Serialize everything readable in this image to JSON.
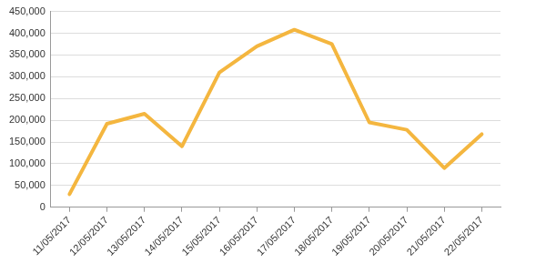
{
  "chart_data": {
    "type": "line",
    "categories": [
      "11/05/2017",
      "12/05/2017",
      "13/05/2017",
      "14/05/2017",
      "15/05/2017",
      "16/05/2017",
      "17/05/2017",
      "18/05/2017",
      "19/05/2017",
      "20/05/2017",
      "21/05/2017",
      "22/05/2017"
    ],
    "values": [
      30000,
      192000,
      215000,
      140000,
      310000,
      370000,
      408000,
      375000,
      195000,
      178000,
      90000,
      168000
    ],
    "color": "#f4b63f",
    "marker": "none",
    "line_style": "solid",
    "ylim": [
      0,
      450000
    ],
    "yticks": [
      0,
      {
        "value": 50000,
        "label": "50,000"
      },
      {
        "value": 100000,
        "label": "100,000"
      },
      {
        "value": 150000,
        "label": "150,000"
      },
      {
        "value": 200000,
        "label": "200,000"
      },
      {
        "value": 250000,
        "label": "250,000"
      },
      {
        "value": 300000,
        "label": "300,000"
      },
      {
        "value": 350000,
        "label": "350,000"
      },
      {
        "value": 400000,
        "label": "400,000"
      },
      {
        "value": 450000,
        "label": "450,000"
      }
    ],
    "grid": true
  }
}
